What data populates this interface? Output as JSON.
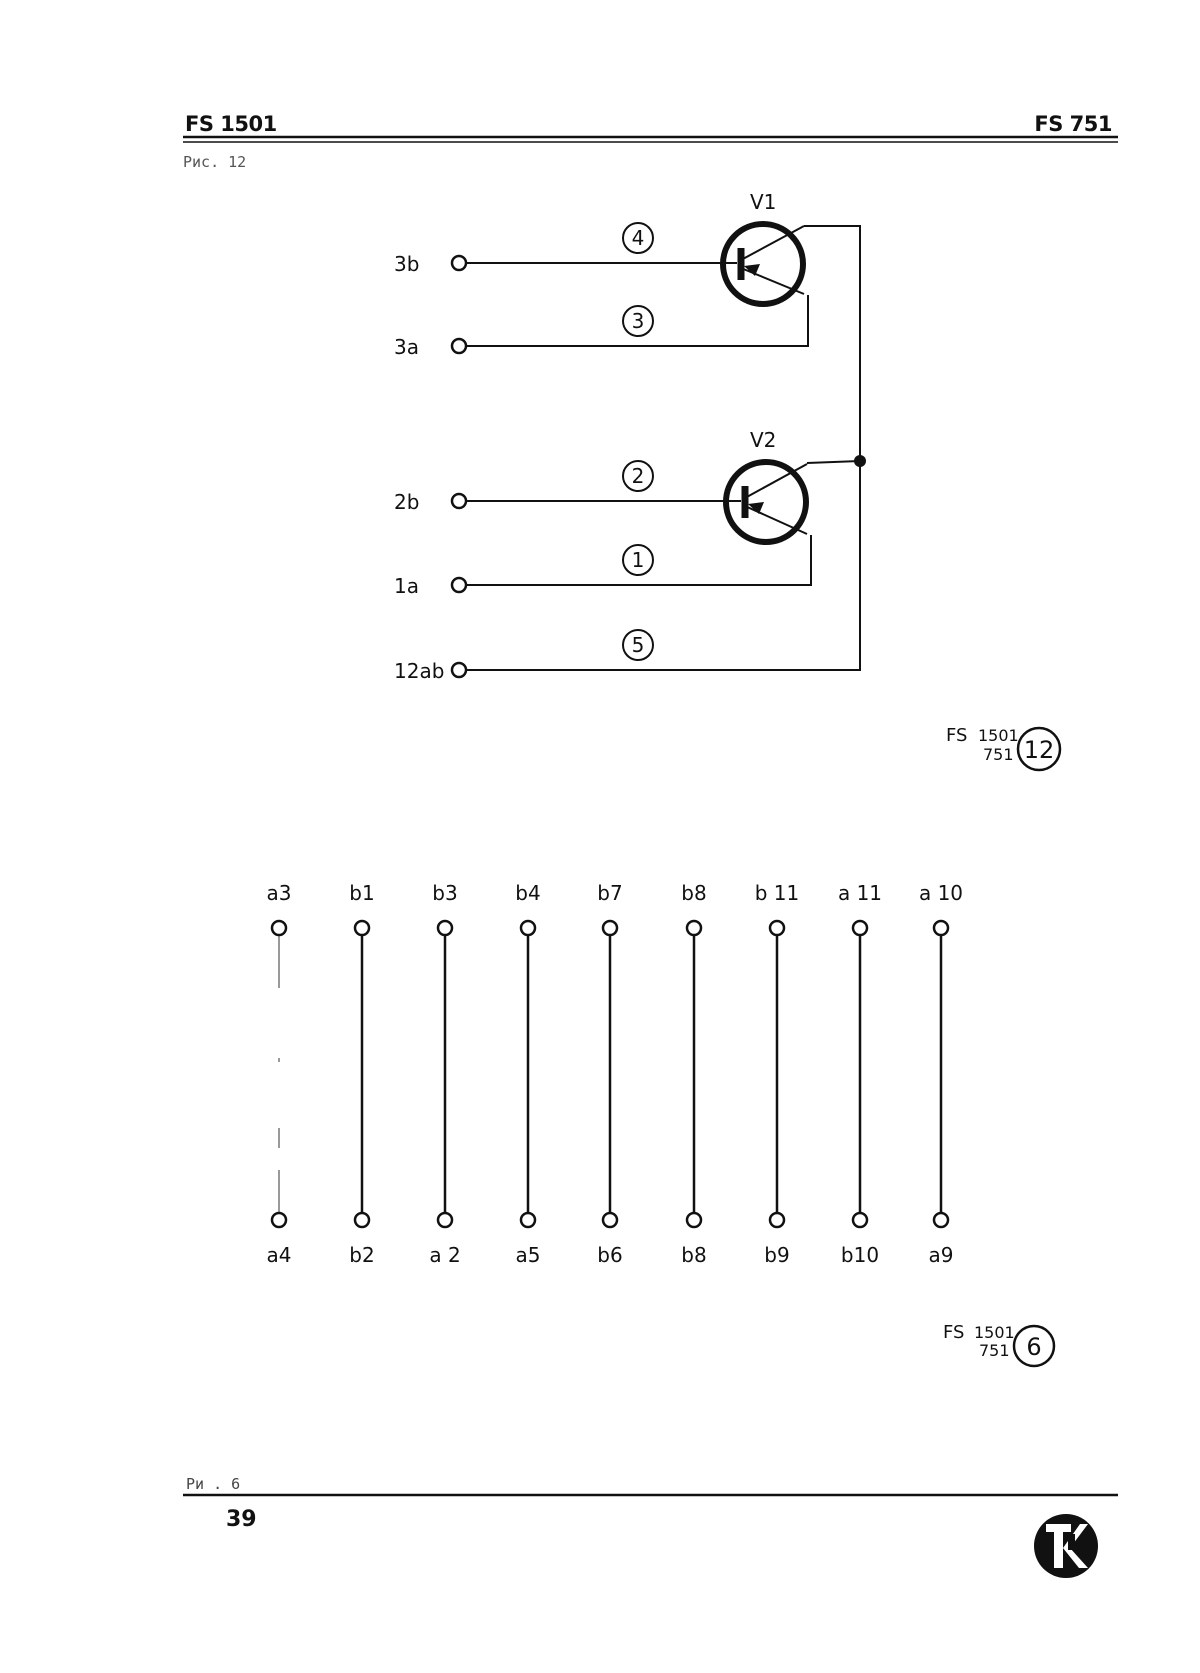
{
  "header": {
    "left": "FS 1501",
    "right": "FS 751"
  },
  "figure_caption_top": "Рис. 12",
  "figure_caption_bottom": "Ри . 6",
  "page_number": "39",
  "diagram_top": {
    "transistors": [
      {
        "label": "V1"
      },
      {
        "label": "V2"
      }
    ],
    "terminals": [
      {
        "label": "3b",
        "wire": "4"
      },
      {
        "label": "3a",
        "wire": "3"
      },
      {
        "label": "2b",
        "wire": "2"
      },
      {
        "label": "1a",
        "wire": "1"
      },
      {
        "label": "12ab",
        "wire": "5"
      }
    ],
    "reference": {
      "code": "FS",
      "num1": "1501",
      "num2": "751",
      "circled": "12"
    }
  },
  "diagram_bottom": {
    "bridges": [
      {
        "top": "a3",
        "bottom": "a4",
        "dashed": true
      },
      {
        "top": "b1",
        "bottom": "b2",
        "dashed": false
      },
      {
        "top": "b3",
        "bottom": "a 2",
        "dashed": false
      },
      {
        "top": "b4",
        "bottom": "a5",
        "dashed": false
      },
      {
        "top": "b7",
        "bottom": "b6",
        "dashed": false
      },
      {
        "top": "b8",
        "bottom": "b8",
        "dashed": false
      },
      {
        "top": "b 11",
        "bottom": "b9",
        "dashed": false
      },
      {
        "top": "a 11",
        "bottom": "b10",
        "dashed": false
      },
      {
        "top": "a 10",
        "bottom": "a9",
        "dashed": false
      }
    ],
    "reference": {
      "code": "FS",
      "num1": "1501",
      "num2": "751",
      "circled": "6"
    }
  }
}
